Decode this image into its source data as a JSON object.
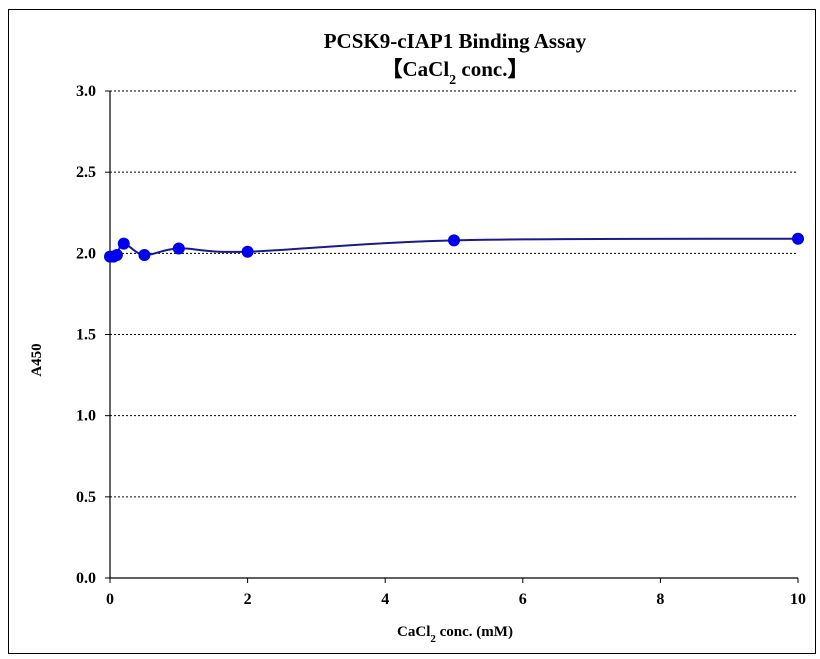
{
  "chart_data": {
    "type": "line",
    "title_line1": "PCSK9-cIAP1 Binding Assay",
    "title_line2_prefix": "【CaCl",
    "title_line2_sub": "2",
    "title_line2_suffix": " conc.】",
    "xlabel_prefix": "CaCl",
    "xlabel_sub": "2",
    "xlabel_suffix": " conc. (mM)",
    "ylabel": "A450",
    "xlim": [
      0,
      10
    ],
    "ylim": [
      0,
      3.0
    ],
    "xticks": [
      0,
      2,
      4,
      6,
      8,
      10
    ],
    "xtick_labels": [
      "0",
      "2",
      "4",
      "6",
      "8",
      "10"
    ],
    "yticks": [
      0,
      0.5,
      1.0,
      1.5,
      2.0,
      2.5,
      3.0
    ],
    "ytick_labels": [
      "0.0",
      "0.5",
      "1.0",
      "1.5",
      "2.0",
      "2.5",
      "3.0"
    ],
    "grid": "horizontal-dashed",
    "series": [
      {
        "x": [
          0,
          0.05,
          0.1,
          0.2,
          0.5,
          1,
          2,
          5,
          10
        ],
        "y": [
          1.98,
          1.98,
          1.99,
          2.06,
          1.99,
          2.03,
          2.01,
          2.08,
          2.09
        ]
      }
    ],
    "line_color": "#1a1a8c",
    "marker_color": "#0000ee"
  }
}
